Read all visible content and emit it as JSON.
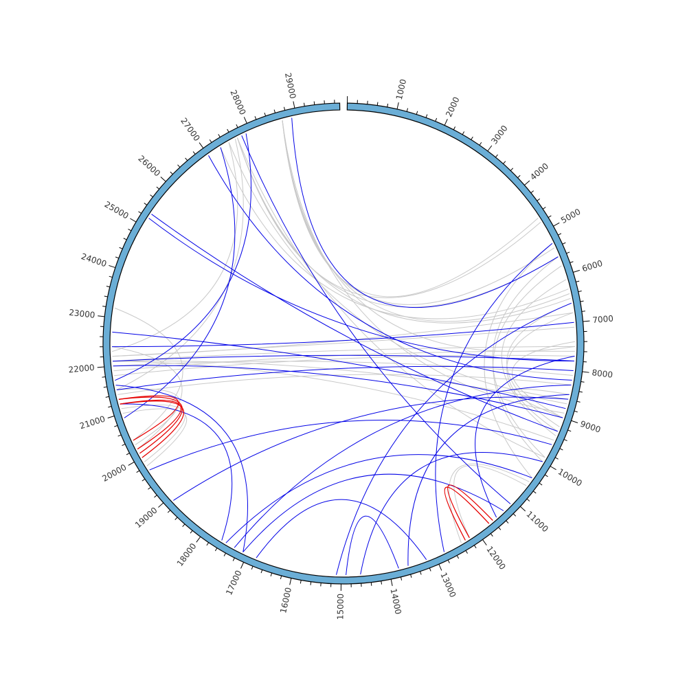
{
  "genome": {
    "length": 29903,
    "ring_color": "#6baed6",
    "ring_outline": "#000000",
    "major_tick_step": 1000,
    "minor_tick_step": 200,
    "tick_labels": [
      "1000",
      "2000",
      "3000",
      "4000",
      "5000",
      "6000",
      "7000",
      "8000",
      "9000",
      "10000",
      "11000",
      "12000",
      "13000",
      "14000",
      "15000",
      "16000",
      "17000",
      "18000",
      "19000",
      "20000",
      "21000",
      "22000",
      "23000",
      "24000",
      "25000",
      "26000",
      "27000",
      "28000",
      "29000"
    ]
  },
  "link_colors": {
    "gray": "#c8c8c8",
    "blue": "#0000e6",
    "red": "#e60000"
  },
  "links": {
    "gray": [
      [
        28700,
        4700
      ],
      [
        28700,
        5400
      ],
      [
        28700,
        6400
      ],
      [
        28700,
        7500
      ],
      [
        28700,
        8900
      ],
      [
        27700,
        4800
      ],
      [
        27700,
        5600
      ],
      [
        27700,
        6500
      ],
      [
        27700,
        9900
      ],
      [
        27500,
        22300
      ],
      [
        27650,
        21500
      ],
      [
        27300,
        6300
      ],
      [
        27500,
        8600
      ],
      [
        22200,
        6800
      ],
      [
        22200,
        7100
      ],
      [
        22100,
        7500
      ],
      [
        22100,
        8700
      ],
      [
        22000,
        8100
      ],
      [
        21900,
        7600
      ],
      [
        22100,
        9500
      ],
      [
        21400,
        8300
      ],
      [
        21800,
        7700
      ],
      [
        10400,
        5300
      ],
      [
        10000,
        5800
      ],
      [
        9900,
        5600
      ],
      [
        9400,
        6100
      ],
      [
        9300,
        6800
      ],
      [
        9000,
        7400
      ],
      [
        9200,
        6600
      ],
      [
        9000,
        8500
      ],
      [
        10600,
        12200
      ],
      [
        10500,
        12400
      ],
      [
        20000,
        21200
      ],
      [
        19800,
        21000
      ],
      [
        19900,
        21100
      ],
      [
        20100,
        21300
      ],
      [
        20300,
        21500
      ],
      [
        20400,
        23200
      ],
      [
        20200,
        22400
      ]
    ],
    "blue": [
      [
        28900,
        5600
      ],
      [
        27900,
        21700
      ],
      [
        27300,
        20900
      ],
      [
        27800,
        11100
      ],
      [
        27000,
        8200
      ],
      [
        25200,
        7800
      ],
      [
        25300,
        9300
      ],
      [
        22400,
        7000
      ],
      [
        22700,
        8800
      ],
      [
        22100,
        7800
      ],
      [
        21500,
        8000
      ],
      [
        21200,
        17600
      ],
      [
        22000,
        9000
      ],
      [
        21600,
        17100
      ],
      [
        18900,
        8600
      ],
      [
        17300,
        8300
      ],
      [
        17100,
        11300
      ],
      [
        17500,
        10400
      ],
      [
        16800,
        13200
      ],
      [
        14600,
        10000
      ],
      [
        15100,
        6600
      ],
      [
        14900,
        13800
      ],
      [
        19700,
        9600
      ],
      [
        12800,
        5300
      ],
      [
        13600,
        8500
      ],
      [
        11500,
        7700
      ]
    ],
    "red": [
      [
        20000,
        21200
      ],
      [
        20100,
        21300
      ],
      [
        20200,
        21200
      ],
      [
        20400,
        21300
      ],
      [
        12200,
        11600
      ],
      [
        12300,
        11700
      ]
    ]
  }
}
